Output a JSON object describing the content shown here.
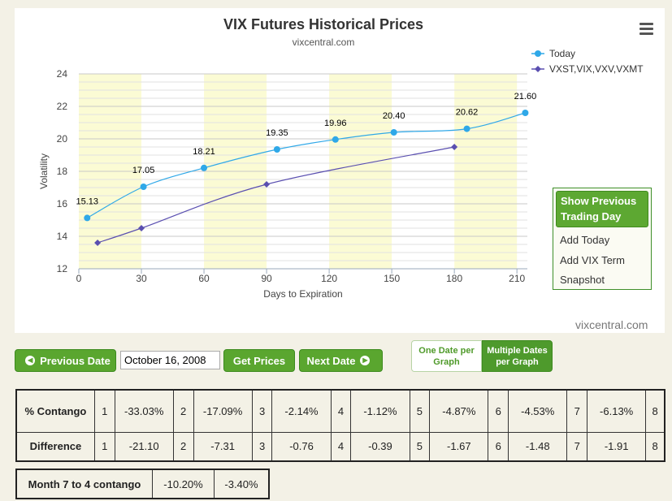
{
  "chart_data": {
    "type": "line",
    "title": "VIX Futures Historical Prices",
    "subtitle": "vixcentral.com",
    "xlabel": "Days to Expiration",
    "ylabel": "Volatility",
    "xlim": [
      0,
      215
    ],
    "ylim": [
      12,
      24
    ],
    "xticks": [
      "0",
      "30",
      "60",
      "90",
      "120",
      "150",
      "180",
      "210"
    ],
    "yticks": [
      "12",
      "14",
      "16",
      "18",
      "20",
      "22",
      "24"
    ],
    "legend_position": "top-right",
    "shaded_bands": [
      [
        0,
        30
      ],
      [
        60,
        90
      ],
      [
        120,
        150
      ],
      [
        180,
        210
      ]
    ],
    "series": [
      {
        "name": "Today",
        "color": "#2fa8e8",
        "marker": "circle",
        "x": [
          4,
          31,
          60,
          95,
          123,
          151,
          186,
          214
        ],
        "y": [
          15.13,
          17.05,
          18.21,
          19.35,
          19.96,
          20.4,
          20.62,
          21.6
        ],
        "labels": [
          "15.13",
          "17.05",
          "18.21",
          "19.35",
          "19.96",
          "20.40",
          "20.62",
          "21.60"
        ]
      },
      {
        "name": "VXST,VIX,VXV,VXMT",
        "color": "#5a4fb0",
        "marker": "diamond",
        "x": [
          9,
          30,
          90,
          180
        ],
        "y": [
          13.6,
          14.5,
          17.2,
          19.5
        ]
      }
    ]
  },
  "menu_icon": "hamburger-menu-icon",
  "side_panel": {
    "primary": "Show Previous Trading Day",
    "items": [
      "Add Today",
      "Add VIX Term",
      "Snapshot"
    ]
  },
  "watermark": "vixcentral.com",
  "controls": {
    "previous_date": "Previous Date",
    "date_value": "October 16, 2008",
    "get_prices": "Get Prices",
    "next_date": "Next Date",
    "one_date": "One Date per Graph",
    "multiple_dates": "Multiple Dates per Graph"
  },
  "table": {
    "contango_label": "% Contango",
    "contango": [
      [
        "1",
        "-33.03%"
      ],
      [
        "2",
        "-17.09%"
      ],
      [
        "3",
        "-2.14%"
      ],
      [
        "4",
        "-1.12%"
      ],
      [
        "5",
        "-4.87%"
      ],
      [
        "6",
        "-4.53%"
      ],
      [
        "7",
        "-6.13%"
      ]
    ],
    "contango_last": "8",
    "difference_label": "Difference",
    "difference": [
      [
        "1",
        "-21.10"
      ],
      [
        "2",
        "-7.31"
      ],
      [
        "3",
        "-0.76"
      ],
      [
        "4",
        "-0.39"
      ],
      [
        "5",
        "-1.67"
      ],
      [
        "6",
        "-1.48"
      ],
      [
        "7",
        "-1.91"
      ]
    ],
    "difference_last": "8"
  },
  "small_table": {
    "label": "Month 7 to 4 contango",
    "v1": "-10.20%",
    "v2": "-3.40%"
  },
  "colors": {
    "accent_green": "#5aa62f",
    "band_yellow": "#fbfbd4",
    "page_bg": "#f3f1e6"
  }
}
